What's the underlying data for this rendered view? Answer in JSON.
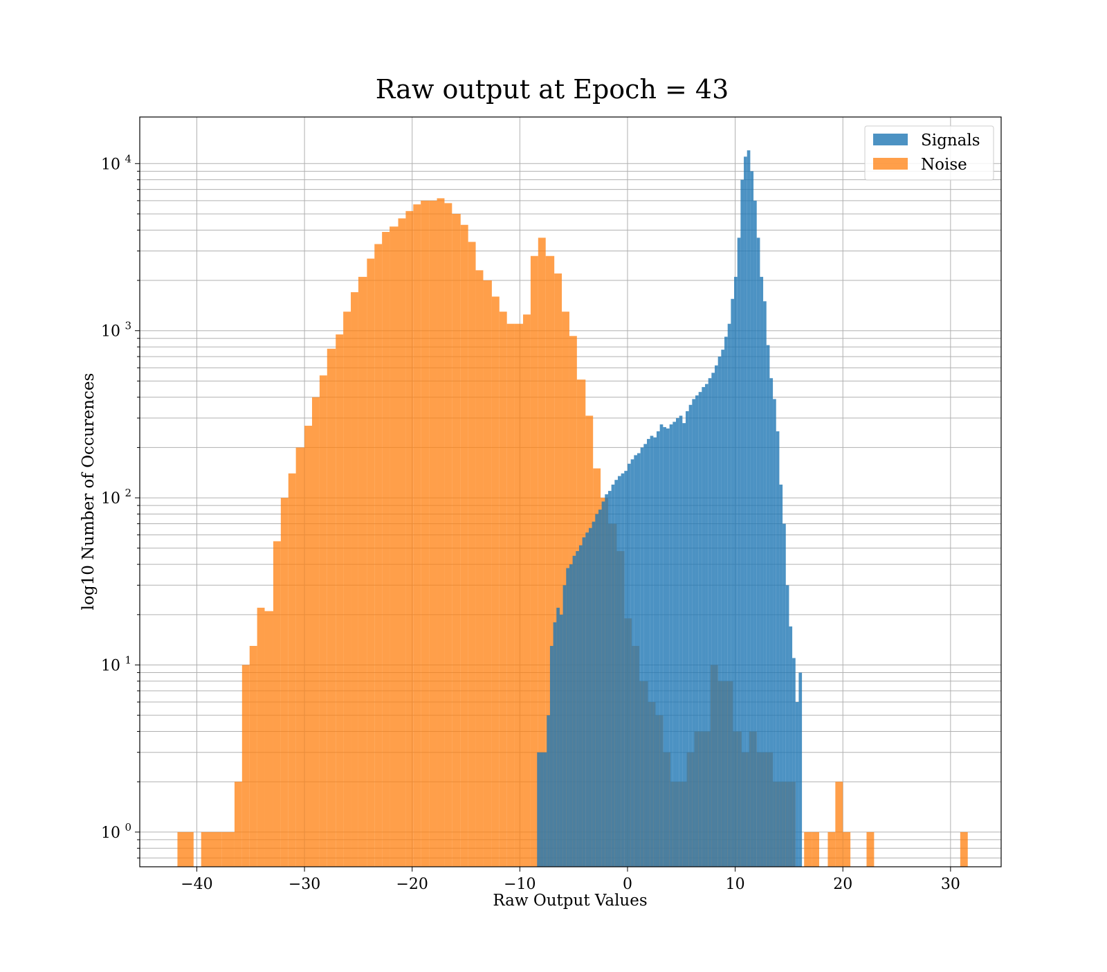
{
  "chart_data": {
    "type": "bar",
    "subtype": "overlaid-histogram",
    "title": "Raw output at Epoch = 43",
    "xlabel": "Raw Output Values",
    "ylabel": "log10 Number of Occurences",
    "xlim": [
      -45.3,
      34.7
    ],
    "ylim": [
      0.62,
      19000
    ],
    "yscale": "log",
    "grid": true,
    "grid_minor_y": true,
    "legend_position": "top-right",
    "x_ticks": [
      -40,
      -30,
      -20,
      -10,
      0,
      10,
      20,
      30
    ],
    "x_tick_labels": [
      "−40",
      "−30",
      "−20",
      "−10",
      "0",
      "10",
      "20",
      "30"
    ],
    "y_ticks": [
      {
        "value": 1,
        "base": "10",
        "exp": "0"
      },
      {
        "value": 10,
        "base": "10",
        "exp": "1"
      },
      {
        "value": 100,
        "base": "10",
        "exp": "2"
      },
      {
        "value": 1000,
        "base": "10",
        "exp": "3"
      },
      {
        "value": 10000,
        "base": "10",
        "exp": "4"
      }
    ],
    "series": [
      {
        "name": "Noise",
        "color": "#ff7f0e",
        "alpha": 0.75,
        "bins": [
          [
            -41.8,
            -40.3,
            1
          ],
          [
            -39.6,
            -37.7,
            1
          ],
          [
            -37.7,
            -36.5,
            1
          ],
          [
            -36.5,
            -35.8,
            2
          ],
          [
            -35.8,
            -35.1,
            10
          ],
          [
            -35.1,
            -34.4,
            13
          ],
          [
            -34.4,
            -33.7,
            22
          ],
          [
            -33.7,
            -32.9,
            21
          ],
          [
            -32.9,
            -32.2,
            55
          ],
          [
            -32.2,
            -31.5,
            100
          ],
          [
            -31.5,
            -30.8,
            140
          ],
          [
            -30.8,
            -30.0,
            200
          ],
          [
            -30.0,
            -29.3,
            270
          ],
          [
            -29.3,
            -28.6,
            400
          ],
          [
            -28.6,
            -27.9,
            540
          ],
          [
            -27.9,
            -27.1,
            780
          ],
          [
            -27.1,
            -26.4,
            950
          ],
          [
            -26.4,
            -25.7,
            1300
          ],
          [
            -25.7,
            -25.0,
            1700
          ],
          [
            -25.0,
            -24.2,
            2100
          ],
          [
            -24.2,
            -23.5,
            2700
          ],
          [
            -23.5,
            -22.8,
            3300
          ],
          [
            -22.8,
            -22.1,
            3900
          ],
          [
            -22.1,
            -21.3,
            4200
          ],
          [
            -21.3,
            -20.6,
            4700
          ],
          [
            -20.6,
            -19.9,
            5200
          ],
          [
            -19.9,
            -19.2,
            5700
          ],
          [
            -19.2,
            -18.4,
            6000
          ],
          [
            -18.4,
            -17.7,
            6000
          ],
          [
            -17.7,
            -17.0,
            6200
          ],
          [
            -17.0,
            -16.3,
            5800
          ],
          [
            -16.3,
            -15.5,
            5000
          ],
          [
            -15.5,
            -14.8,
            4300
          ],
          [
            -14.8,
            -14.1,
            3400
          ],
          [
            -14.1,
            -13.4,
            2300
          ],
          [
            -13.4,
            -12.6,
            2000
          ],
          [
            -12.6,
            -11.9,
            1600
          ],
          [
            -11.9,
            -11.2,
            1300
          ],
          [
            -11.2,
            -10.5,
            1100
          ],
          [
            -10.5,
            -9.7,
            1100
          ],
          [
            -9.7,
            -9.0,
            1250
          ],
          [
            -9.0,
            -8.3,
            2800
          ],
          [
            -8.3,
            -7.6,
            3600
          ],
          [
            -7.6,
            -6.8,
            2800
          ],
          [
            -6.8,
            -6.1,
            2200
          ],
          [
            -6.1,
            -5.4,
            1300
          ],
          [
            -5.4,
            -4.7,
            930
          ],
          [
            -4.7,
            -3.9,
            510
          ],
          [
            -3.9,
            -3.2,
            310
          ],
          [
            -3.2,
            -2.5,
            150
          ],
          [
            -2.5,
            -1.8,
            100
          ],
          [
            -1.8,
            -1.0,
            70
          ],
          [
            -1.0,
            -0.3,
            48
          ],
          [
            -0.3,
            0.4,
            19
          ],
          [
            0.4,
            1.1,
            13
          ],
          [
            1.1,
            1.9,
            8
          ],
          [
            1.9,
            2.6,
            6
          ],
          [
            2.6,
            3.3,
            5
          ],
          [
            3.3,
            4.0,
            3
          ],
          [
            4.0,
            4.8,
            2
          ],
          [
            4.8,
            5.5,
            2
          ],
          [
            5.5,
            6.2,
            3
          ],
          [
            6.2,
            6.9,
            4
          ],
          [
            6.9,
            7.7,
            4
          ],
          [
            7.7,
            8.4,
            10
          ],
          [
            8.4,
            9.1,
            8
          ],
          [
            9.1,
            9.8,
            8
          ],
          [
            9.8,
            10.6,
            4
          ],
          [
            10.6,
            11.3,
            3
          ],
          [
            11.3,
            12.0,
            4
          ],
          [
            12.0,
            12.7,
            3
          ],
          [
            12.7,
            13.5,
            3
          ],
          [
            13.5,
            14.2,
            2
          ],
          [
            14.2,
            14.9,
            2
          ],
          [
            14.9,
            15.6,
            2
          ],
          [
            16.4,
            17.1,
            1
          ],
          [
            17.1,
            17.8,
            1
          ],
          [
            18.6,
            19.3,
            1
          ],
          [
            19.3,
            20.0,
            2
          ],
          [
            20.0,
            20.7,
            1
          ],
          [
            22.2,
            22.9,
            1
          ],
          [
            30.9,
            31.6,
            1
          ]
        ]
      },
      {
        "name": "Signals",
        "color": "#1f77b4",
        "alpha": 0.8,
        "bins": [
          [
            -8.4,
            -8.1,
            3
          ],
          [
            -8.1,
            -7.8,
            3
          ],
          [
            -7.8,
            -7.5,
            3
          ],
          [
            -7.5,
            -7.2,
            5
          ],
          [
            -7.2,
            -6.9,
            13
          ],
          [
            -6.9,
            -6.6,
            18
          ],
          [
            -6.6,
            -6.3,
            22
          ],
          [
            -6.3,
            -6.0,
            20
          ],
          [
            -6.0,
            -5.7,
            30
          ],
          [
            -5.7,
            -5.4,
            38
          ],
          [
            -5.4,
            -5.1,
            40
          ],
          [
            -5.1,
            -4.8,
            45
          ],
          [
            -4.8,
            -4.5,
            48
          ],
          [
            -4.5,
            -4.2,
            52
          ],
          [
            -4.2,
            -3.9,
            58
          ],
          [
            -3.9,
            -3.6,
            62
          ],
          [
            -3.6,
            -3.3,
            66
          ],
          [
            -3.3,
            -3.0,
            72
          ],
          [
            -3.0,
            -2.7,
            80
          ],
          [
            -2.7,
            -2.4,
            85
          ],
          [
            -2.4,
            -2.1,
            95
          ],
          [
            -2.1,
            -1.8,
            105
          ],
          [
            -1.8,
            -1.5,
            110
          ],
          [
            -1.5,
            -1.2,
            120
          ],
          [
            -1.2,
            -0.9,
            128
          ],
          [
            -0.9,
            -0.6,
            135
          ],
          [
            -0.6,
            -0.3,
            140
          ],
          [
            -0.3,
            0.0,
            145
          ],
          [
            0.0,
            0.3,
            160
          ],
          [
            0.3,
            0.6,
            170
          ],
          [
            0.6,
            0.9,
            180
          ],
          [
            0.9,
            1.2,
            185
          ],
          [
            1.2,
            1.5,
            200
          ],
          [
            1.5,
            1.8,
            210
          ],
          [
            1.8,
            2.1,
            225
          ],
          [
            2.1,
            2.4,
            235
          ],
          [
            2.4,
            2.7,
            230
          ],
          [
            2.7,
            3.0,
            250
          ],
          [
            3.0,
            3.3,
            275
          ],
          [
            3.3,
            3.6,
            265
          ],
          [
            3.6,
            3.9,
            260
          ],
          [
            3.9,
            4.2,
            275
          ],
          [
            4.2,
            4.5,
            285
          ],
          [
            4.5,
            4.8,
            300
          ],
          [
            4.8,
            5.1,
            310
          ],
          [
            5.1,
            5.4,
            280
          ],
          [
            5.4,
            5.7,
            330
          ],
          [
            5.7,
            6.0,
            360
          ],
          [
            6.0,
            6.3,
            390
          ],
          [
            6.3,
            6.6,
            410
          ],
          [
            6.6,
            6.9,
            430
          ],
          [
            6.9,
            7.2,
            460
          ],
          [
            7.2,
            7.5,
            480
          ],
          [
            7.5,
            7.8,
            520
          ],
          [
            7.8,
            8.1,
            560
          ],
          [
            8.1,
            8.4,
            620
          ],
          [
            8.4,
            8.7,
            700
          ],
          [
            8.7,
            9.0,
            770
          ],
          [
            9.0,
            9.3,
            920
          ],
          [
            9.3,
            9.6,
            1100
          ],
          [
            9.6,
            9.9,
            1550
          ],
          [
            9.9,
            10.2,
            2100
          ],
          [
            10.2,
            10.5,
            3600
          ],
          [
            10.5,
            10.8,
            8000
          ],
          [
            10.8,
            11.1,
            11000
          ],
          [
            11.1,
            11.4,
            12000
          ],
          [
            11.4,
            11.7,
            9000
          ],
          [
            11.7,
            12.0,
            6000
          ],
          [
            12.0,
            12.3,
            3600
          ],
          [
            12.3,
            12.6,
            2100
          ],
          [
            12.6,
            12.9,
            1500
          ],
          [
            12.9,
            13.2,
            820
          ],
          [
            13.2,
            13.5,
            520
          ],
          [
            13.5,
            13.8,
            390
          ],
          [
            13.8,
            14.1,
            250
          ],
          [
            14.1,
            14.4,
            120
          ],
          [
            14.4,
            14.7,
            70
          ],
          [
            14.7,
            15.0,
            30
          ],
          [
            15.0,
            15.3,
            17
          ],
          [
            15.3,
            15.6,
            11
          ],
          [
            15.6,
            15.9,
            6
          ],
          [
            15.9,
            16.2,
            9
          ]
        ]
      }
    ]
  }
}
